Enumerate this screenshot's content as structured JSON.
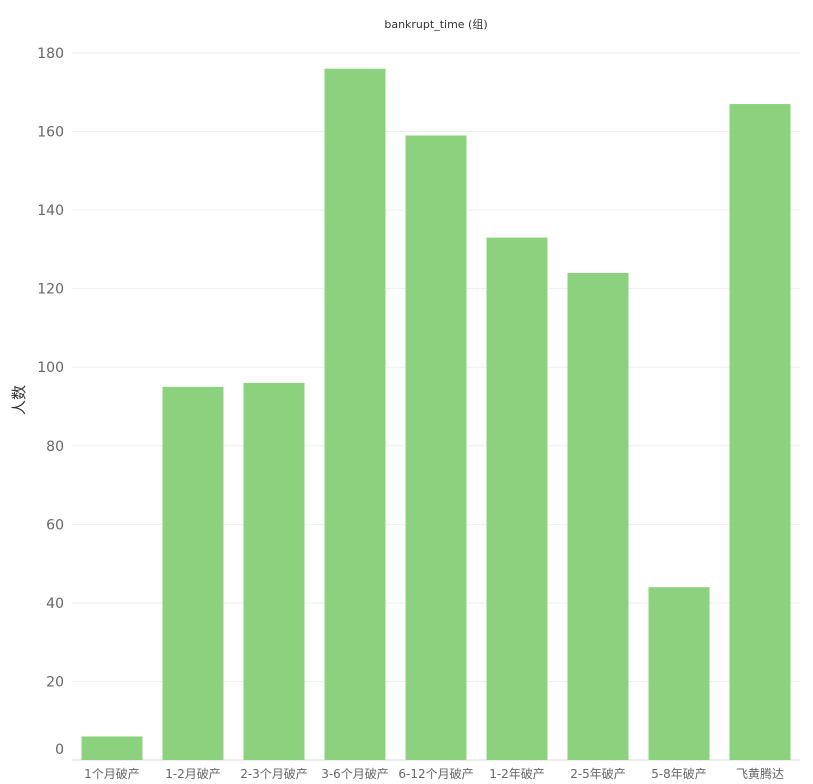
{
  "chart_data": {
    "type": "bar",
    "title": "bankrupt_time (组)",
    "xlabel": "",
    "ylabel": "人数",
    "categories": [
      "1个月破产",
      "1-2月破产",
      "2-3个月破产",
      "3-6个月破产",
      "6-12个月破产",
      "1-2年破产",
      "2-5年破产",
      "5-8年破产",
      "飞黄腾达"
    ],
    "values": [
      6,
      95,
      96,
      176,
      159,
      133,
      124,
      44,
      167
    ],
    "ylim": [
      0,
      180
    ],
    "yticks": [
      0,
      20,
      40,
      60,
      80,
      100,
      120,
      140,
      160,
      180
    ],
    "grid": true,
    "bar_color": "#8cd17d"
  }
}
